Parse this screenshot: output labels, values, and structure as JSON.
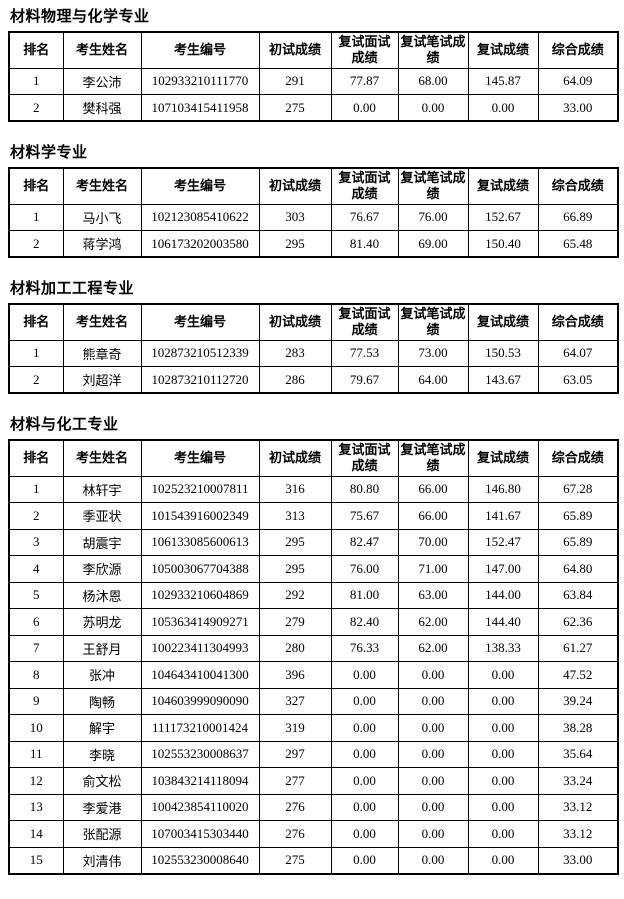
{
  "page": {
    "background_color": "#ffffff",
    "text_color": "#000000",
    "border_color": "#000000"
  },
  "columns": [
    "排名",
    "考生姓名",
    "考生编号",
    "初试成绩",
    "复试面试成绩",
    "复试笔试成绩",
    "复试成绩",
    "综合成绩"
  ],
  "sections": [
    {
      "title": "材料物理与化学专业",
      "rows": [
        [
          "1",
          "李公沛",
          "102933210111770",
          "291",
          "77.87",
          "68.00",
          "145.87",
          "64.09"
        ],
        [
          "2",
          "樊科强",
          "107103415411958",
          "275",
          "0.00",
          "0.00",
          "0.00",
          "33.00"
        ]
      ]
    },
    {
      "title": "材料学专业",
      "rows": [
        [
          "1",
          "马小飞",
          "102123085410622",
          "303",
          "76.67",
          "76.00",
          "152.67",
          "66.89"
        ],
        [
          "2",
          "蒋学鸿",
          "106173202003580",
          "295",
          "81.40",
          "69.00",
          "150.40",
          "65.48"
        ]
      ]
    },
    {
      "title": "材料加工工程专业",
      "rows": [
        [
          "1",
          "熊章奇",
          "102873210512339",
          "283",
          "77.53",
          "73.00",
          "150.53",
          "64.07"
        ],
        [
          "2",
          "刘超洋",
          "102873210112720",
          "286",
          "79.67",
          "64.00",
          "143.67",
          "63.05"
        ]
      ]
    },
    {
      "title": "材料与化工专业",
      "rows": [
        [
          "1",
          "林轩宇",
          "102523210007811",
          "316",
          "80.80",
          "66.00",
          "146.80",
          "67.28"
        ],
        [
          "2",
          "季亚状",
          "101543916002349",
          "313",
          "75.67",
          "66.00",
          "141.67",
          "65.89"
        ],
        [
          "3",
          "胡震宇",
          "106133085600613",
          "295",
          "82.47",
          "70.00",
          "152.47",
          "65.89"
        ],
        [
          "4",
          "李欣源",
          "105003067704388",
          "295",
          "76.00",
          "71.00",
          "147.00",
          "64.80"
        ],
        [
          "5",
          "杨沐恩",
          "102933210604869",
          "292",
          "81.00",
          "63.00",
          "144.00",
          "63.84"
        ],
        [
          "6",
          "苏明龙",
          "105363414909271",
          "279",
          "82.40",
          "62.00",
          "144.40",
          "62.36"
        ],
        [
          "7",
          "王舒月",
          "100223411304993",
          "280",
          "76.33",
          "62.00",
          "138.33",
          "61.27"
        ],
        [
          "8",
          "张冲",
          "104643410041300",
          "396",
          "0.00",
          "0.00",
          "0.00",
          "47.52"
        ],
        [
          "9",
          "陶畅",
          "104603999090090",
          "327",
          "0.00",
          "0.00",
          "0.00",
          "39.24"
        ],
        [
          "10",
          "解宇",
          "111173210001424",
          "319",
          "0.00",
          "0.00",
          "0.00",
          "38.28"
        ],
        [
          "11",
          "李晓",
          "102553230008637",
          "297",
          "0.00",
          "0.00",
          "0.00",
          "35.64"
        ],
        [
          "12",
          "俞文松",
          "103843214118094",
          "277",
          "0.00",
          "0.00",
          "0.00",
          "33.24"
        ],
        [
          "13",
          "李爱港",
          "100423854110020",
          "276",
          "0.00",
          "0.00",
          "0.00",
          "33.12"
        ],
        [
          "14",
          "张配源",
          "107003415303440",
          "276",
          "0.00",
          "0.00",
          "0.00",
          "33.12"
        ],
        [
          "15",
          "刘清伟",
          "102553230008640",
          "275",
          "0.00",
          "0.00",
          "0.00",
          "33.00"
        ]
      ]
    }
  ]
}
